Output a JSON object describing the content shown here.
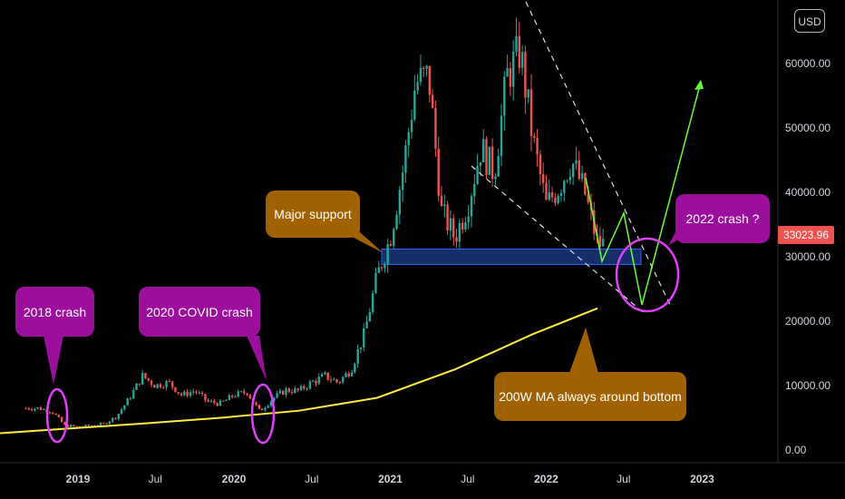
{
  "currency": "USD",
  "current_price": "33023.96",
  "annotations": {
    "crash_2018": "2018 crash",
    "crash_2020": "2020 COVID crash",
    "major_support": "Major support",
    "ma_note": "200W MA always around bottom",
    "crash_2022": "2022 crash ?"
  },
  "colors": {
    "background": "#000000",
    "up_candle": "#26a69a",
    "down_candle": "#ef5350",
    "ma_line": "#ffeb3b",
    "support_zone": "#1e3f8f",
    "projection": "#66ff33",
    "callout_pink": "#9c0f9c",
    "callout_brown": "#a06200",
    "circle": "#e040fb"
  },
  "chart_data": {
    "type": "candlestick",
    "title": "",
    "y_ticks": [
      "0.00",
      "10000.00",
      "20000.00",
      "30000.00",
      "40000.00",
      "50000.00",
      "60000.00"
    ],
    "x_ticks": [
      "2019",
      "Jul",
      "2020",
      "Jul",
      "2021",
      "Jul",
      "2022",
      "Jul",
      "2023"
    ],
    "ylim": [
      0,
      68000
    ],
    "series": [
      {
        "name": "",
        "type": "candlestick",
        "x": [
          "2018-10",
          "2018-11",
          "2018-12",
          "2019-01",
          "2019-02",
          "2019-03",
          "2019-04",
          "2019-05",
          "2019-06",
          "2019-07",
          "2019-08",
          "2019-09",
          "2019-10",
          "2019-11",
          "2019-12",
          "2020-01",
          "2020-02",
          "2020-03",
          "2020-04",
          "2020-05",
          "2020-06",
          "2020-07",
          "2020-08",
          "2020-09",
          "2020-10",
          "2020-11",
          "2020-12",
          "2021-01",
          "2021-02",
          "2021-03",
          "2021-04",
          "2021-05",
          "2021-06",
          "2021-07",
          "2021-08",
          "2021-09",
          "2021-10",
          "2021-11",
          "2021-12",
          "2022-01",
          "2022-02",
          "2022-03",
          "2022-04",
          "2022-05"
        ],
        "values": [
          6500,
          6000,
          3800,
          3600,
          3800,
          4000,
          5200,
          8000,
          11500,
          10000,
          10500,
          8500,
          9200,
          7500,
          7200,
          8500,
          9000,
          6000,
          8000,
          9300,
          9200,
          10500,
          11500,
          10500,
          12500,
          18000,
          27000,
          33000,
          44000,
          57000,
          58000,
          37000,
          33000,
          38000,
          47000,
          43000,
          58000,
          62000,
          48000,
          38000,
          41000,
          45000,
          40000,
          32000
        ]
      },
      {
        "name": "200W MA",
        "type": "line",
        "x": [
          "2018-06",
          "2018-12",
          "2019-06",
          "2019-12",
          "2020-06",
          "2020-12",
          "2021-06",
          "2021-12",
          "2022-05"
        ],
        "values": [
          2400,
          3300,
          4100,
          5000,
          6100,
          8100,
          12500,
          18000,
          22000
        ]
      },
      {
        "name": "",
        "type": "zone",
        "values": [
          28800,
          31200
        ]
      }
    ]
  }
}
